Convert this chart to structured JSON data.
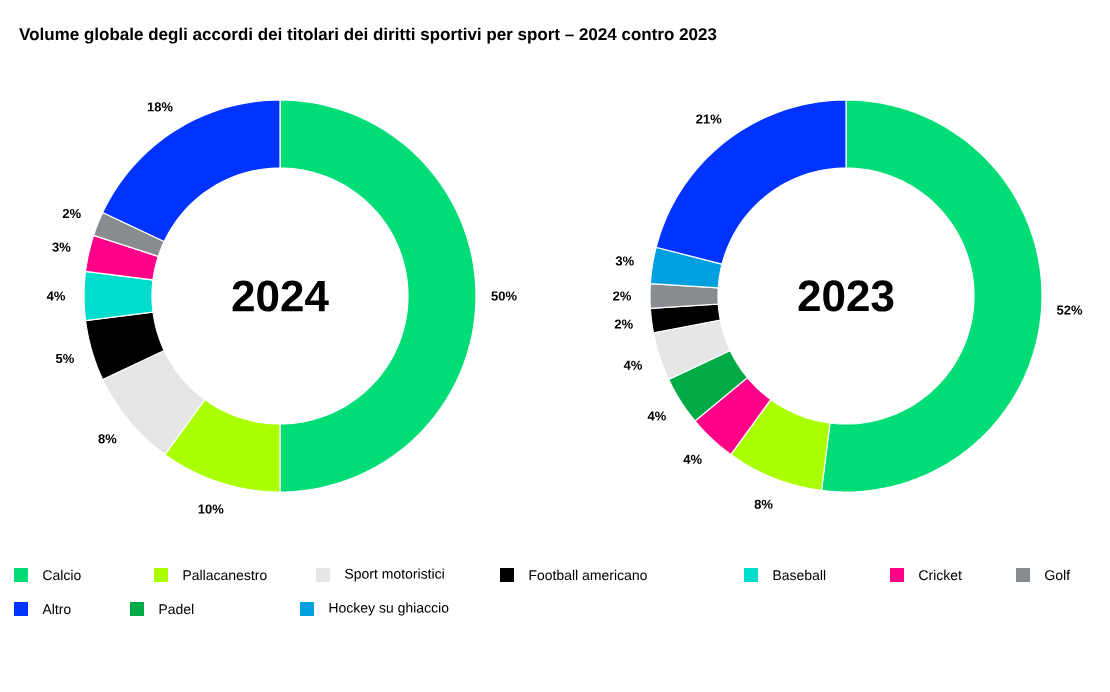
{
  "chart_data": [
    {
      "type": "donut",
      "title": "Volume globale degli accordi dei titolari dei diritti sportivi per sport – 2024 contro 2023",
      "subtitle": "2024",
      "categories": [
        "Calcio",
        "Pallacanestro",
        "Sport motoristici",
        "Football americano",
        "Baseball",
        "Cricket",
        "Golf",
        "Altro"
      ],
      "values": [
        50,
        10,
        8,
        5,
        4,
        3,
        2,
        18
      ],
      "colors": [
        "#00dd77",
        "#aaff00",
        "#e6e6e6",
        "#000000",
        "#00ddcc",
        "#ff0088",
        "#888c90",
        "#0033ff"
      ],
      "value_labels": [
        "50%",
        "10%",
        "8%",
        "5%",
        "4%",
        "3%",
        "2%",
        "18%"
      ],
      "legend": "bottom"
    },
    {
      "type": "donut",
      "subtitle": "2023",
      "categories": [
        null,
        null,
        null,
        "Padel",
        null,
        null,
        null,
        "Hockey su ghiaccio",
        null
      ],
      "values": [
        52,
        8,
        4,
        4,
        4,
        2,
        2,
        3,
        21
      ],
      "colors": [
        "#00dd77",
        "#aaff00",
        "#ff0088",
        "#00aa44",
        "#e6e6e6",
        "#000000",
        "#888c90",
        "#00a0e0",
        "#0033ff"
      ],
      "value_labels": [
        "52%",
        "8%",
        "4%",
        "4%",
        "4%",
        "2%",
        "2%",
        "3%",
        "21%"
      ],
      "legend": "bottom"
    }
  ]
}
